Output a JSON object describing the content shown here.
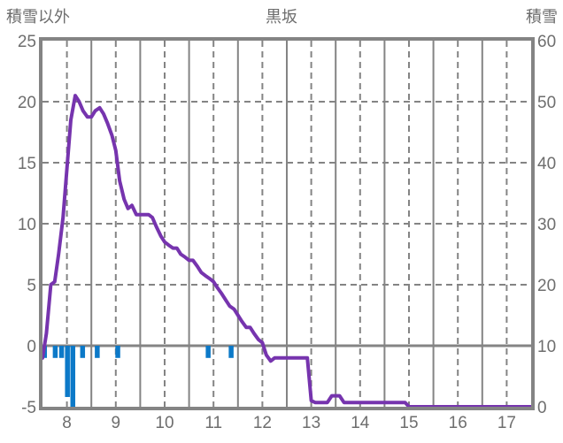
{
  "header": {
    "left_axis_title": "積雪以外",
    "chart_title": "黒坂",
    "right_axis_title": "積雪"
  },
  "colors": {
    "line": "#7634AE",
    "bars": "#0C79C8",
    "grid": "#848484",
    "frame": "#848484",
    "zero_line": "#848484",
    "text": "#6e6e6e",
    "background": "#ffffff"
  },
  "chart_data": {
    "type": "line+bar",
    "title": "黒坂",
    "x_axis": {
      "domain": [
        7.5,
        17.5
      ],
      "tick_labels": [
        "8",
        "9",
        "10",
        "11",
        "12",
        "13",
        "14",
        "15",
        "16",
        "17"
      ],
      "tick_hours": [
        8,
        9,
        10,
        11,
        12,
        13,
        14,
        15,
        16,
        17
      ],
      "hour_gridline_style": "dashed",
      "half_hour_gridlines": [
        8.5,
        9.5,
        10.5,
        11.5,
        12.5,
        13.5,
        14.5,
        15.5,
        16.5
      ],
      "half_hour_gridline_style": "solid"
    },
    "left_axis": {
      "title": "積雪以外",
      "ticks": [
        25,
        20,
        15,
        10,
        5,
        0,
        -5
      ],
      "range": [
        -5,
        25
      ],
      "zero_line_solid": true
    },
    "right_axis": {
      "title": "積雪",
      "ticks": [
        60,
        50,
        40,
        30,
        20,
        10,
        0
      ],
      "range": [
        0,
        60
      ]
    },
    "series": [
      {
        "name": "snow-depth-line",
        "type": "line",
        "axis": "right",
        "color": "#7634AE",
        "hours": [
          7.5,
          7.58,
          7.67,
          7.75,
          7.83,
          7.92,
          8.0,
          8.08,
          8.17,
          8.25,
          8.33,
          8.42,
          8.5,
          8.58,
          8.67,
          8.75,
          8.83,
          8.92,
          9.0,
          9.08,
          9.17,
          9.25,
          9.33,
          9.42,
          9.5,
          9.58,
          9.67,
          9.75,
          9.83,
          9.92,
          10.0,
          10.08,
          10.17,
          10.25,
          10.33,
          10.42,
          10.5,
          10.58,
          10.67,
          10.75,
          10.83,
          10.92,
          11.0,
          11.08,
          11.17,
          11.25,
          11.33,
          11.42,
          11.5,
          11.58,
          11.67,
          11.75,
          11.83,
          11.92,
          12.0,
          12.08,
          12.17,
          12.25,
          12.33,
          12.5,
          12.67,
          12.83,
          12.92,
          13.0,
          13.08,
          13.17,
          13.25,
          13.33,
          13.42,
          13.5,
          13.58,
          13.67,
          13.75,
          14.0,
          14.25,
          14.5,
          14.75,
          14.92,
          15.0,
          15.5,
          16.0,
          16.5,
          17.0,
          17.5
        ],
        "values": [
          8,
          12,
          20,
          20.5,
          25,
          31,
          39,
          47,
          51,
          50,
          48.5,
          47.5,
          47.5,
          48.5,
          49,
          48,
          46.5,
          44.5,
          42,
          37,
          34,
          32.5,
          33,
          31.5,
          31.5,
          31.5,
          31.5,
          31,
          29.5,
          28,
          27,
          26.5,
          26,
          26,
          25,
          24.5,
          24,
          24,
          23,
          22,
          21.5,
          21,
          20.5,
          19.5,
          18.5,
          17.5,
          16.5,
          16,
          15,
          14,
          13,
          13,
          12,
          11,
          10.5,
          8.5,
          7.5,
          8,
          8,
          8,
          8,
          8,
          8,
          1,
          0.7,
          0.7,
          0.7,
          0.7,
          1.8,
          1.8,
          1.8,
          0.7,
          0.7,
          0.7,
          0.7,
          0.7,
          0.7,
          0.7,
          0,
          0,
          0,
          0,
          0,
          0
        ]
      },
      {
        "name": "non-snow-bars",
        "type": "bar",
        "axis": "left",
        "color": "#0C79C8",
        "hours": [
          7.5,
          7.72,
          7.85,
          7.97,
          8.08,
          8.28,
          8.58,
          9.0,
          10.85,
          11.32
        ],
        "values": [
          -1,
          -1,
          -1,
          -4.2,
          -5,
          -1,
          -1,
          -1,
          -1,
          -1
        ]
      }
    ]
  }
}
